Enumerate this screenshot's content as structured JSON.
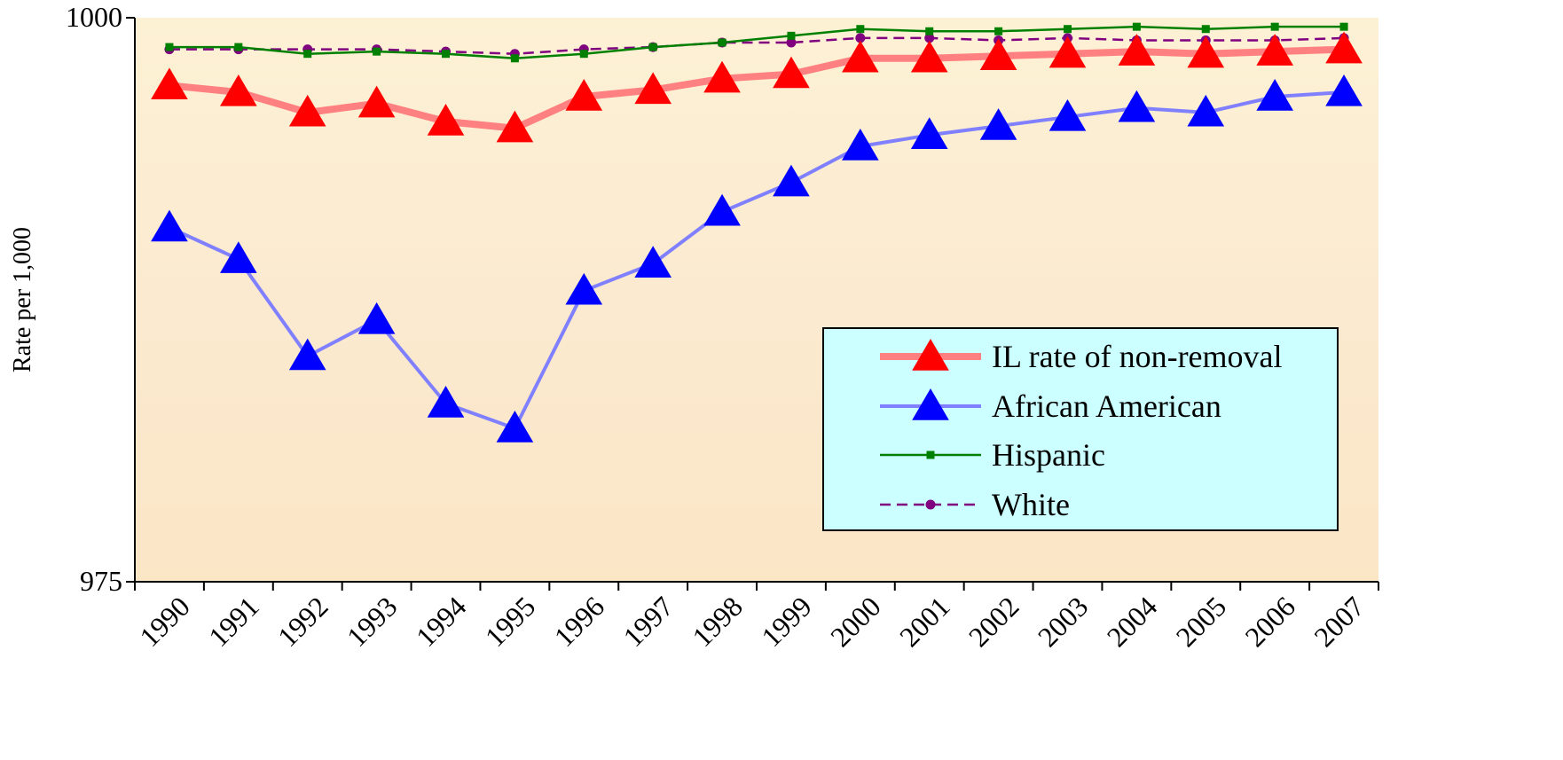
{
  "chart_data": {
    "type": "line",
    "title": "",
    "xlabel": "",
    "ylabel": "Rate per 1,000",
    "ylim": [
      975,
      1000
    ],
    "y_ticks": [
      "1000",
      "975"
    ],
    "categories": [
      "1990",
      "1991",
      "1992",
      "1993",
      "1994",
      "1995",
      "1996",
      "1997",
      "1998",
      "1999",
      "2000",
      "2001",
      "2002",
      "2003",
      "2004",
      "2005",
      "2006",
      "2007"
    ],
    "legend_position": "bottom-right",
    "grid": false,
    "series": [
      {
        "name": "IL rate of non-removal",
        "color": "#ff8080",
        "marker": "triangle",
        "marker_color": "#ff0000",
        "values": [
          997.0,
          996.7,
          995.8,
          996.2,
          995.4,
          995.1,
          996.5,
          996.8,
          997.3,
          997.5,
          998.2,
          998.2,
          998.3,
          998.4,
          998.5,
          998.4,
          998.5,
          998.6
        ]
      },
      {
        "name": "African American",
        "color": "#8080ff",
        "marker": "triangle",
        "marker_color": "#0000ff",
        "values": [
          990.7,
          989.3,
          985.0,
          986.6,
          982.9,
          981.8,
          987.9,
          989.1,
          991.4,
          992.7,
          994.3,
          994.8,
          995.2,
          995.6,
          996.0,
          995.8,
          996.5,
          996.7
        ]
      },
      {
        "name": "Hispanic",
        "color": "#008000",
        "marker": "square",
        "marker_color": "#008000",
        "values": [
          998.7,
          998.7,
          998.4,
          998.5,
          998.4,
          998.2,
          998.4,
          998.7,
          998.9,
          999.2,
          999.5,
          999.4,
          999.4,
          999.5,
          999.6,
          999.5,
          999.6,
          999.6
        ]
      },
      {
        "name": "White",
        "color": "#800080",
        "marker": "circle",
        "marker_color": "#800080",
        "values": [
          998.6,
          998.6,
          998.6,
          998.6,
          998.5,
          998.4,
          998.6,
          998.7,
          998.9,
          998.9,
          999.1,
          999.1,
          999.0,
          999.1,
          999.0,
          999.0,
          999.0,
          999.1
        ]
      }
    ]
  }
}
